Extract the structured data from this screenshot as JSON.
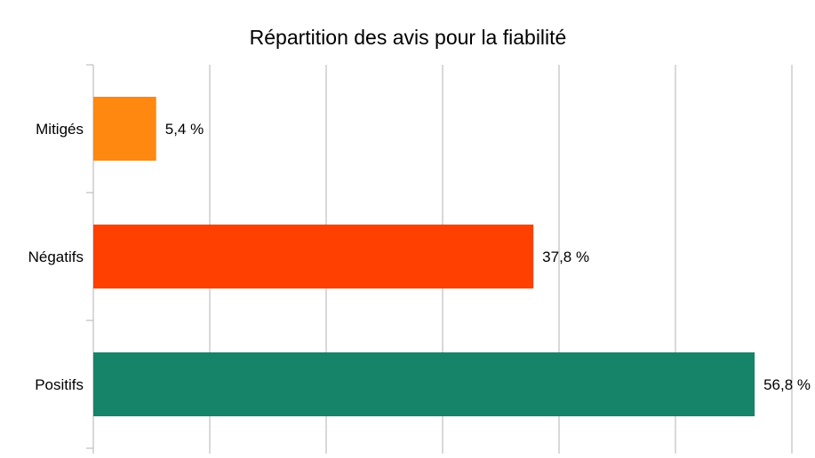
{
  "chart_data": {
    "type": "bar",
    "orientation": "horizontal",
    "title": "Répartition des avis pour la fiabilité",
    "categories": [
      "Mitigés",
      "Négatifs",
      "Positifs"
    ],
    "values": [
      5.4,
      37.8,
      56.8
    ],
    "data_labels": [
      "5,4 %",
      "37,8 %",
      "56,8 %"
    ],
    "colors": [
      "#ff8811",
      "#ff4000",
      "#168469"
    ],
    "xlim": [
      0,
      60
    ],
    "grid": true,
    "xlabel": "",
    "ylabel": ""
  }
}
